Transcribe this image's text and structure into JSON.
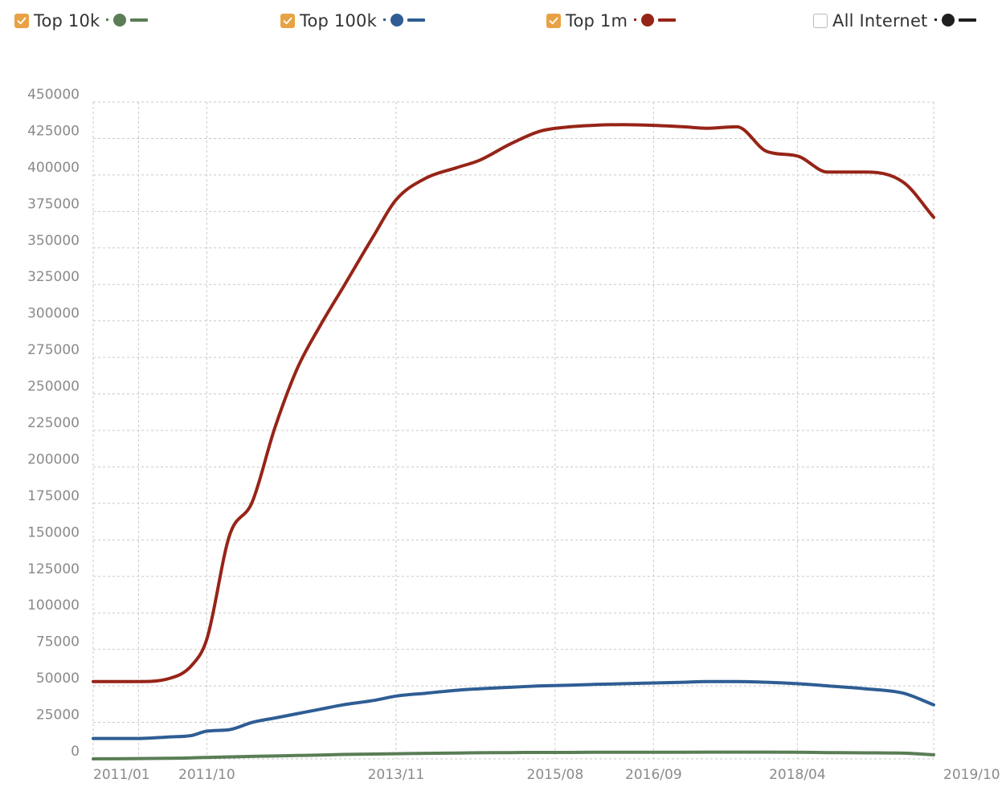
{
  "legend": [
    {
      "label": "Top 10k",
      "checked": true,
      "color": "#5a7d55",
      "icon": "line-dot-swatch"
    },
    {
      "label": "Top 100k",
      "checked": true,
      "color": "#2f5d94",
      "icon": "line-dot-swatch"
    },
    {
      "label": "Top 1m",
      "checked": true,
      "color": "#962417",
      "icon": "line-dot-swatch"
    },
    {
      "label": "All Internet",
      "checked": false,
      "color": "#1f1f1f",
      "icon": "line-dot-swatch"
    }
  ],
  "chart_data": {
    "type": "line",
    "title": "",
    "xlabel": "",
    "ylabel": "",
    "ylim": [
      0,
      450000
    ],
    "yticks": [
      0,
      25000,
      50000,
      75000,
      100000,
      125000,
      150000,
      175000,
      200000,
      225000,
      250000,
      275000,
      300000,
      325000,
      350000,
      375000,
      400000,
      425000,
      450000
    ],
    "xlim": [
      "2010-07",
      "2019-10"
    ],
    "xticks": [
      "2011/01",
      "2011/10",
      "2013/11",
      "2015/08",
      "2016/09",
      "2018/04",
      "2019/10"
    ],
    "grid": true,
    "legend_position": "top",
    "x": [
      "2010-07",
      "2011-01",
      "2011-05",
      "2011-08",
      "2011-10",
      "2012-01",
      "2012-04",
      "2012-07",
      "2012-10",
      "2013-01",
      "2013-04",
      "2013-08",
      "2013-11",
      "2014-03",
      "2014-07",
      "2014-10",
      "2015-02",
      "2015-06",
      "2015-10",
      "2016-01",
      "2016-05",
      "2016-09",
      "2017-01",
      "2017-04",
      "2017-08",
      "2017-12",
      "2018-04",
      "2018-08",
      "2019-01",
      "2019-06",
      "2019-10"
    ],
    "series": [
      {
        "name": "Top 10k",
        "color": "#5a7d55",
        "values": [
          0,
          200,
          400,
          700,
          1000,
          1400,
          1700,
          2000,
          2300,
          2600,
          3000,
          3300,
          3500,
          3800,
          4000,
          4200,
          4300,
          4400,
          4400,
          4500,
          4500,
          4500,
          4500,
          4600,
          4600,
          4600,
          4500,
          4300,
          4100,
          3900,
          2800
        ]
      },
      {
        "name": "Top 100k",
        "color": "#2f5d94",
        "values": [
          14000,
          14000,
          15000,
          16000,
          19000,
          20000,
          25000,
          28000,
          31000,
          34000,
          37000,
          40000,
          43000,
          45000,
          47000,
          48000,
          49000,
          50000,
          50500,
          51000,
          51500,
          52000,
          52500,
          53000,
          53000,
          52500,
          51500,
          50000,
          48000,
          45000,
          37000
        ]
      },
      {
        "name": "Top 1m",
        "color": "#962417",
        "values": [
          53000,
          53000,
          55000,
          64000,
          82000,
          153000,
          176000,
          227000,
          268000,
          297000,
          323000,
          358000,
          383000,
          398000,
          405000,
          410000,
          421000,
          430000,
          433000,
          434000,
          434500,
          434000,
          433000,
          432000,
          433000,
          416000,
          413000,
          402000,
          402000,
          395000,
          371000
        ]
      }
    ]
  }
}
